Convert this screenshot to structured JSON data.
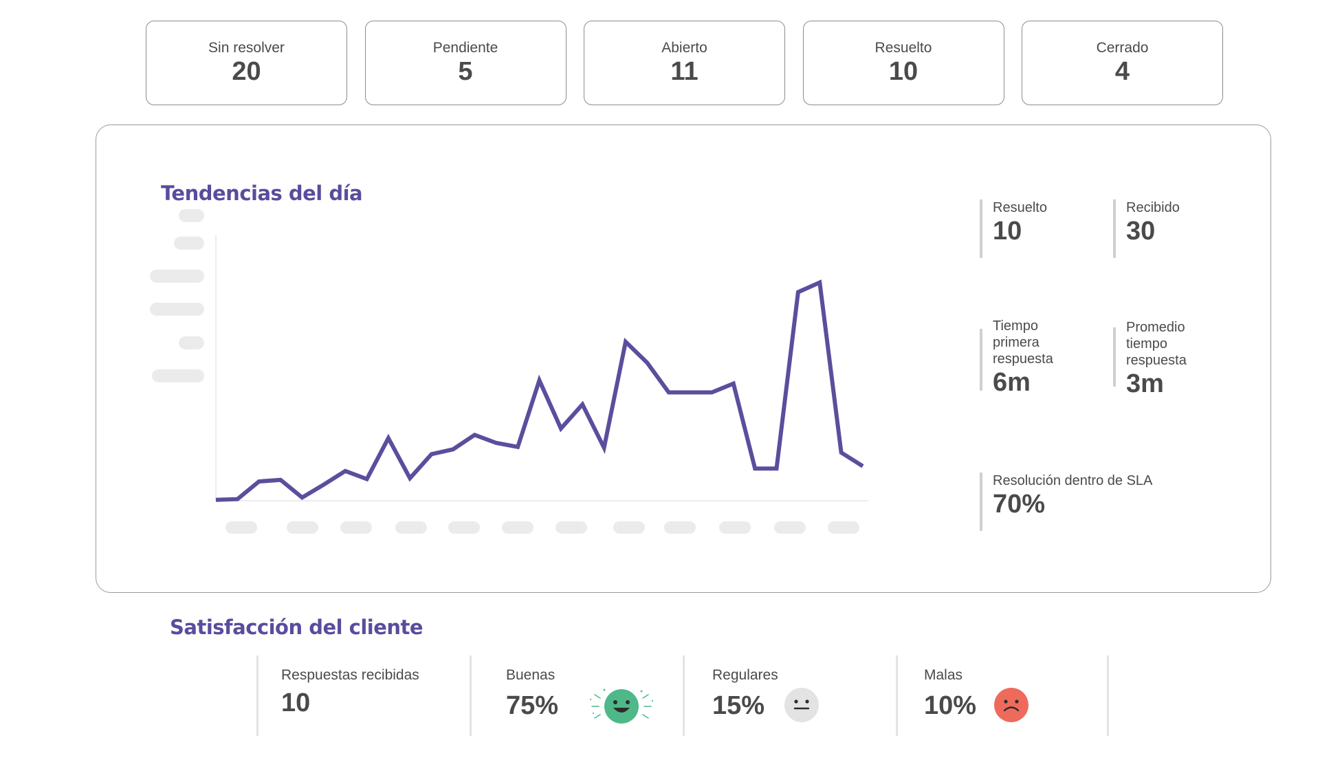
{
  "status_cards": [
    {
      "label": "Sin resolver",
      "value": "20"
    },
    {
      "label": "Pendiente",
      "value": "5"
    },
    {
      "label": "Abierto",
      "value": "11"
    },
    {
      "label": "Resuelto",
      "value": "10"
    },
    {
      "label": "Cerrado",
      "value": "4"
    }
  ],
  "trends": {
    "title": "Tendencias del día",
    "metrics": {
      "resolved": {
        "label": "Resuelto",
        "value": "10"
      },
      "received": {
        "label": "Recibido",
        "value": "30"
      },
      "first_response": {
        "label_lines": [
          "Tiempo",
          "primera",
          "respuesta"
        ],
        "value": "6m"
      },
      "avg_response": {
        "label_lines": [
          "Promedio",
          "tiempo",
          "respuesta"
        ],
        "value": "3m"
      },
      "sla": {
        "label": "Resolución dentro de SLA",
        "value": "70%"
      }
    }
  },
  "chart_data": {
    "type": "line",
    "color": "#5b4e9d",
    "axis_labels_hidden": true,
    "y_tick_count": 6,
    "x_tick_count": 12,
    "ylim": [
      0,
      300
    ],
    "series": [
      {
        "values": [
          1,
          2,
          24,
          26,
          4,
          20,
          37,
          27,
          78,
          28,
          58,
          64,
          82,
          72,
          67,
          150,
          90,
          120,
          66,
          198,
          172,
          135,
          135,
          135,
          146,
          40,
          40,
          260,
          272,
          60,
          43
        ]
      }
    ]
  },
  "satisfaction": {
    "title": "Satisfacción del cliente",
    "responses": {
      "label": "Respuestas recibidas",
      "value": "10"
    },
    "good": {
      "label": "Buenas",
      "value": "75%",
      "icon": "happy-face-icon",
      "color": "#4fb889"
    },
    "neutral": {
      "label": "Regulares",
      "value": "15%",
      "icon": "neutral-face-icon",
      "color": "#e3e3e3"
    },
    "bad": {
      "label": "Malas",
      "value": "10%",
      "icon": "sad-face-icon",
      "color": "#ee6b5c"
    }
  }
}
